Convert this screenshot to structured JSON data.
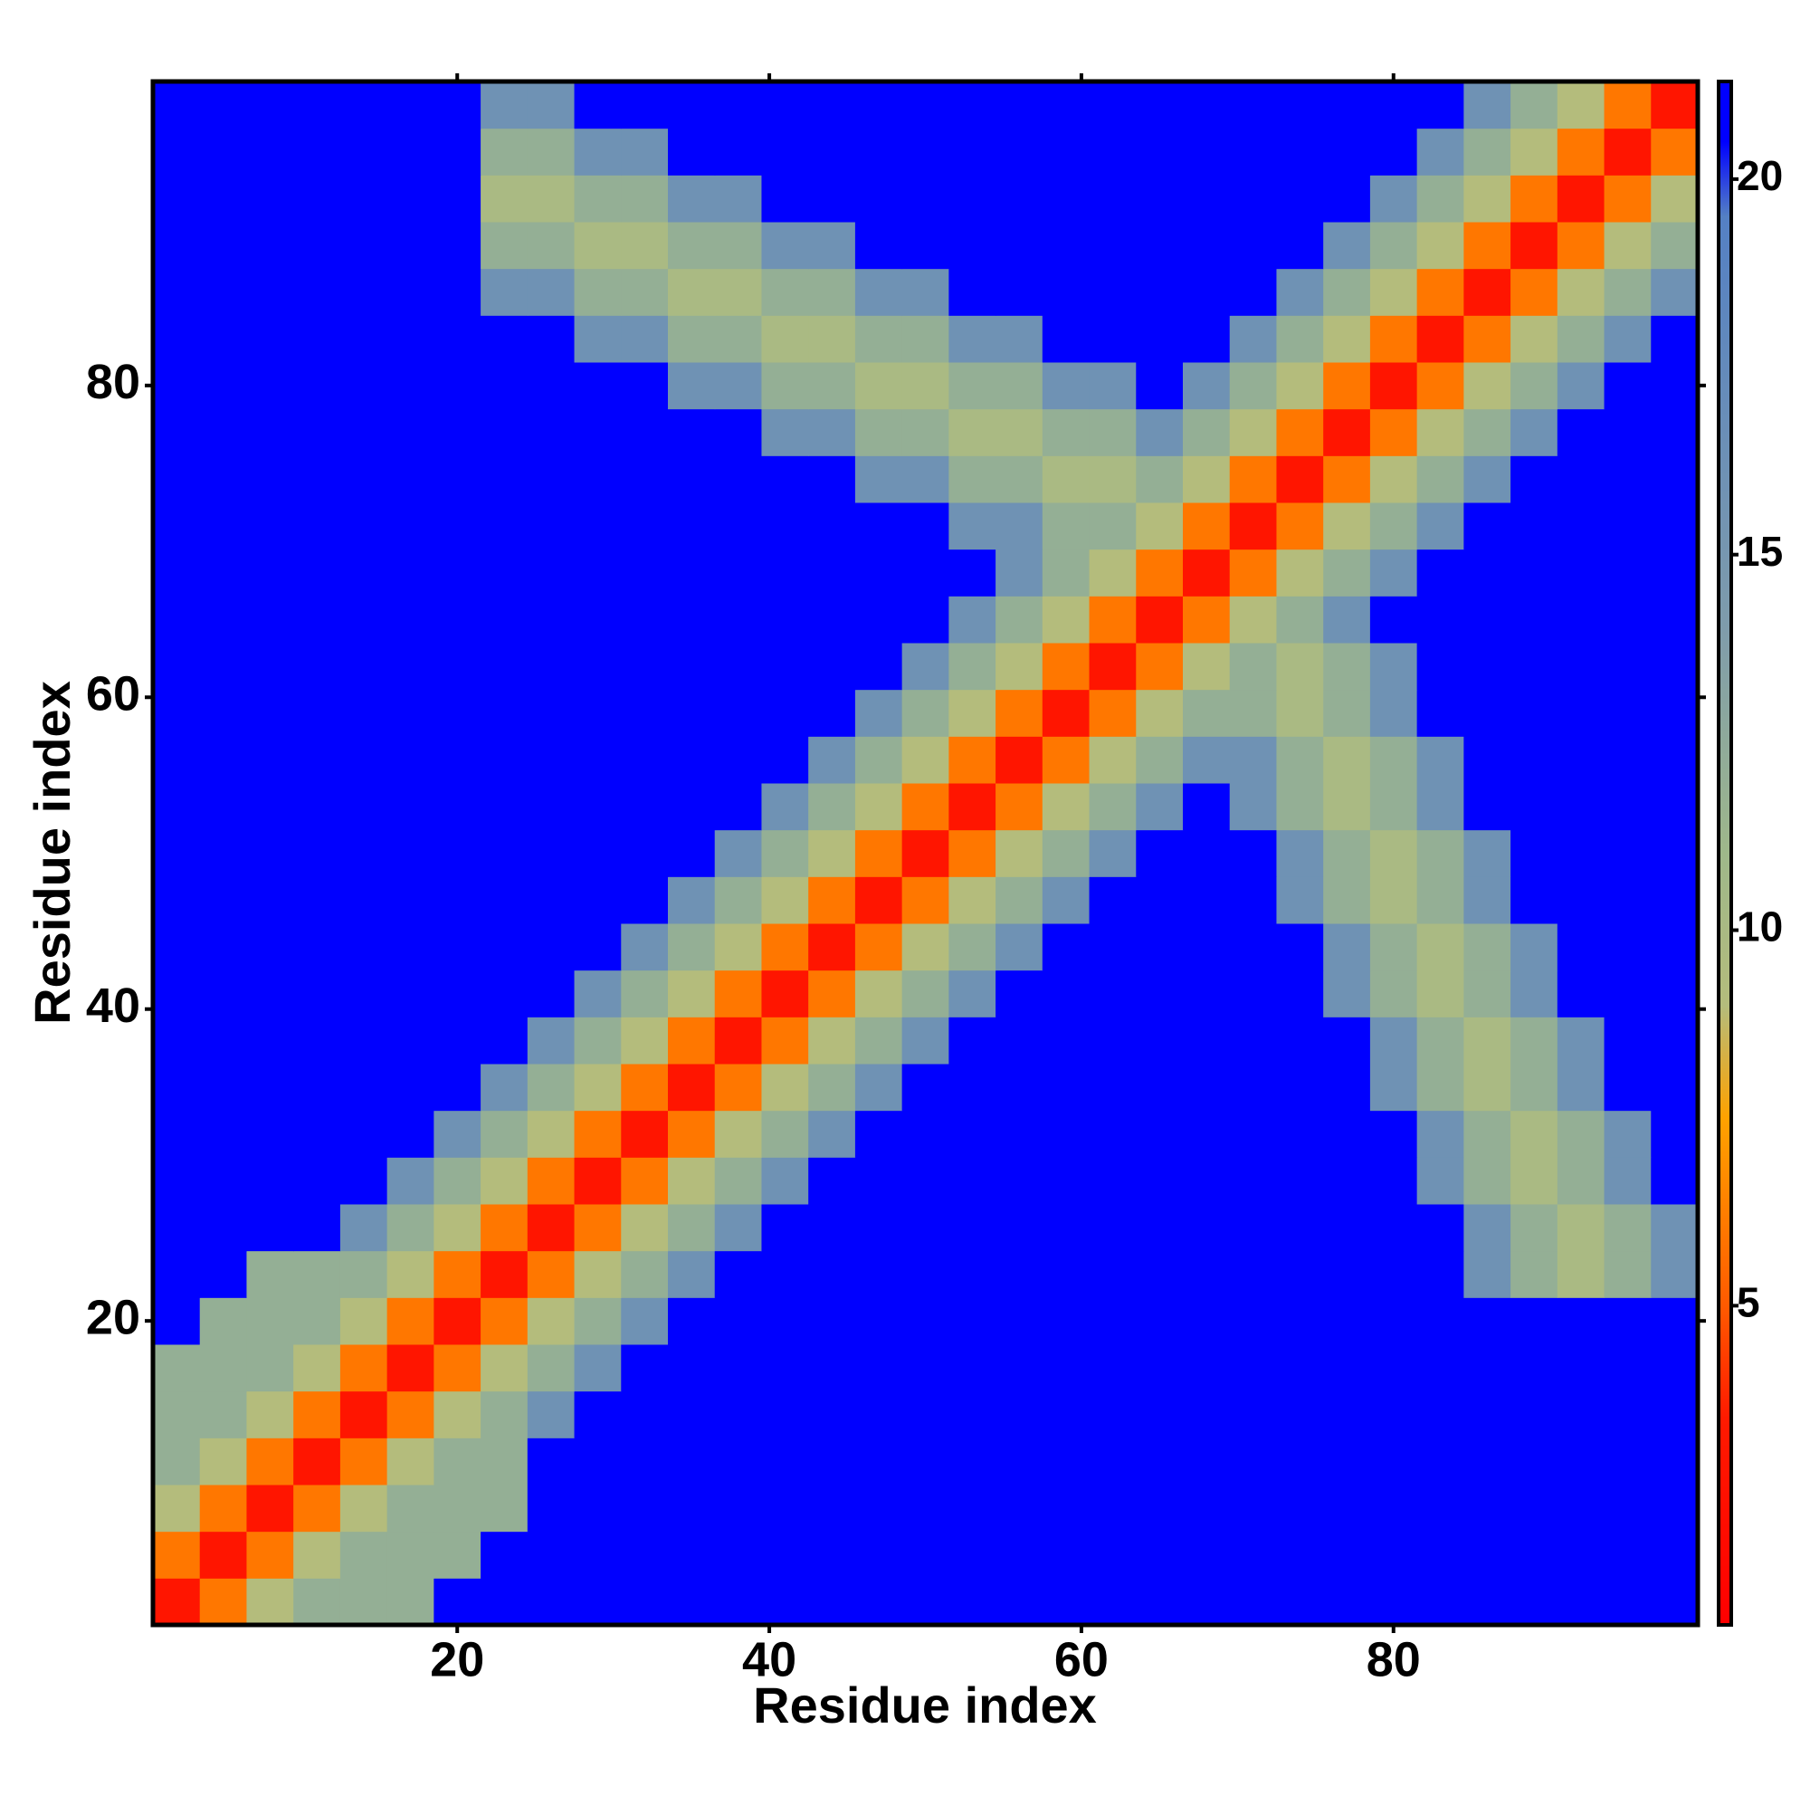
{
  "chart_data": {
    "type": "heatmap",
    "xlabel": "Residue index",
    "ylabel": "Residue index",
    "xlim": [
      0.5,
      99.5
    ],
    "ylim": [
      0.5,
      99.5
    ],
    "xticks": [
      20,
      40,
      60,
      80
    ],
    "yticks": [
      20,
      40,
      60,
      80
    ],
    "x": [
      2,
      5,
      8,
      11,
      14,
      17,
      20,
      23,
      26,
      29,
      32,
      35,
      38,
      41,
      44,
      47,
      50,
      53,
      56,
      59,
      62,
      65,
      68,
      71,
      74,
      77,
      80,
      83,
      86,
      89,
      92,
      95,
      98
    ],
    "y": [
      2,
      5,
      8,
      11,
      14,
      17,
      20,
      23,
      26,
      29,
      32,
      35,
      38,
      41,
      44,
      47,
      50,
      53,
      56,
      59,
      62,
      65,
      68,
      71,
      74,
      77,
      80,
      83,
      86,
      89,
      92,
      95,
      98
    ],
    "z": [
      [
        3,
        6,
        9,
        12,
        12,
        12,
        21,
        21,
        21,
        21,
        21,
        21,
        21,
        21,
        21,
        21,
        21,
        21,
        21,
        21,
        21,
        21,
        21,
        21,
        21,
        21,
        21,
        21,
        21,
        21,
        21,
        21,
        21
      ],
      [
        6,
        3,
        6,
        9,
        12,
        12,
        12,
        21,
        21,
        21,
        21,
        21,
        21,
        21,
        21,
        21,
        21,
        21,
        21,
        21,
        21,
        21,
        21,
        21,
        21,
        21,
        21,
        21,
        21,
        21,
        21,
        21,
        21
      ],
      [
        9,
        6,
        3,
        6,
        9,
        12,
        12,
        12,
        21,
        21,
        21,
        21,
        21,
        21,
        21,
        21,
        21,
        21,
        21,
        21,
        21,
        21,
        21,
        21,
        21,
        21,
        21,
        21,
        21,
        21,
        21,
        21,
        21
      ],
      [
        12,
        9,
        6,
        3,
        6,
        9,
        12,
        12,
        21,
        21,
        21,
        21,
        21,
        21,
        21,
        21,
        21,
        21,
        21,
        21,
        21,
        21,
        21,
        21,
        21,
        21,
        21,
        21,
        21,
        21,
        21,
        21,
        21
      ],
      [
        12,
        12,
        9,
        6,
        3,
        6,
        9,
        12,
        16,
        21,
        21,
        21,
        21,
        21,
        21,
        21,
        21,
        21,
        21,
        21,
        21,
        21,
        21,
        21,
        21,
        21,
        21,
        21,
        21,
        21,
        21,
        21,
        21
      ],
      [
        12,
        12,
        12,
        9,
        6,
        3,
        6,
        9,
        12,
        16,
        21,
        21,
        21,
        21,
        21,
        21,
        21,
        21,
        21,
        21,
        21,
        21,
        21,
        21,
        21,
        21,
        21,
        21,
        21,
        21,
        21,
        21,
        21
      ],
      [
        21,
        12,
        12,
        12,
        9,
        6,
        3,
        6,
        9,
        12,
        16,
        21,
        21,
        21,
        21,
        21,
        21,
        21,
        21,
        21,
        21,
        21,
        21,
        21,
        21,
        21,
        21,
        21,
        21,
        21,
        21,
        21,
        21
      ],
      [
        21,
        21,
        12,
        12,
        12,
        9,
        6,
        3,
        6,
        9,
        12,
        16,
        21,
        21,
        21,
        21,
        21,
        21,
        21,
        21,
        21,
        21,
        21,
        21,
        21,
        21,
        21,
        21,
        16,
        12,
        10,
        12,
        16
      ],
      [
        21,
        21,
        21,
        21,
        16,
        12,
        9,
        6,
        3,
        6,
        9,
        12,
        16,
        21,
        21,
        21,
        21,
        21,
        21,
        21,
        21,
        21,
        21,
        21,
        21,
        21,
        21,
        21,
        16,
        12,
        10,
        12,
        16
      ],
      [
        21,
        21,
        21,
        21,
        21,
        16,
        12,
        9,
        6,
        3,
        6,
        9,
        12,
        16,
        21,
        21,
        21,
        21,
        21,
        21,
        21,
        21,
        21,
        21,
        21,
        21,
        21,
        16,
        12,
        10,
        12,
        16,
        21
      ],
      [
        21,
        21,
        21,
        21,
        21,
        21,
        16,
        12,
        9,
        6,
        3,
        6,
        9,
        12,
        16,
        21,
        21,
        21,
        21,
        21,
        21,
        21,
        21,
        21,
        21,
        21,
        21,
        16,
        12,
        10,
        12,
        16,
        21
      ],
      [
        21,
        21,
        21,
        21,
        21,
        21,
        21,
        16,
        12,
        9,
        6,
        3,
        6,
        9,
        12,
        16,
        21,
        21,
        21,
        21,
        21,
        21,
        21,
        21,
        21,
        21,
        16,
        12,
        10,
        12,
        16,
        21,
        21
      ],
      [
        21,
        21,
        21,
        21,
        21,
        21,
        21,
        21,
        16,
        12,
        9,
        6,
        3,
        6,
        9,
        12,
        16,
        21,
        21,
        21,
        21,
        21,
        21,
        21,
        21,
        21,
        16,
        12,
        10,
        12,
        16,
        21,
        21
      ],
      [
        21,
        21,
        21,
        21,
        21,
        21,
        21,
        21,
        21,
        16,
        12,
        9,
        6,
        3,
        6,
        9,
        12,
        16,
        21,
        21,
        21,
        21,
        21,
        21,
        21,
        16,
        12,
        10,
        12,
        16,
        21,
        21,
        21
      ],
      [
        21,
        21,
        21,
        21,
        21,
        21,
        21,
        21,
        21,
        21,
        16,
        12,
        9,
        6,
        3,
        6,
        9,
        12,
        16,
        21,
        21,
        21,
        21,
        21,
        21,
        16,
        12,
        10,
        12,
        16,
        21,
        21,
        21
      ],
      [
        21,
        21,
        21,
        21,
        21,
        21,
        21,
        21,
        21,
        21,
        21,
        16,
        12,
        9,
        6,
        3,
        6,
        9,
        12,
        16,
        21,
        21,
        21,
        21,
        16,
        12,
        10,
        12,
        16,
        21,
        21,
        21,
        21
      ],
      [
        21,
        21,
        21,
        21,
        21,
        21,
        21,
        21,
        21,
        21,
        21,
        21,
        16,
        12,
        9,
        6,
        3,
        6,
        9,
        12,
        16,
        21,
        21,
        21,
        16,
        12,
        10,
        12,
        16,
        21,
        21,
        21,
        21
      ],
      [
        21,
        21,
        21,
        21,
        21,
        21,
        21,
        21,
        21,
        21,
        21,
        21,
        21,
        16,
        12,
        9,
        6,
        3,
        6,
        9,
        12,
        16,
        21,
        16,
        12,
        10,
        12,
        16,
        21,
        21,
        21,
        21,
        21
      ],
      [
        21,
        21,
        21,
        21,
        21,
        21,
        21,
        21,
        21,
        21,
        21,
        21,
        21,
        21,
        16,
        12,
        9,
        6,
        3,
        6,
        9,
        12,
        16,
        16,
        12,
        10,
        12,
        16,
        21,
        21,
        21,
        21,
        21
      ],
      [
        21,
        21,
        21,
        21,
        21,
        21,
        21,
        21,
        21,
        21,
        21,
        21,
        21,
        21,
        21,
        16,
        12,
        9,
        6,
        3,
        6,
        9,
        12,
        12,
        10,
        12,
        16,
        21,
        21,
        21,
        21,
        21,
        21
      ],
      [
        21,
        21,
        21,
        21,
        21,
        21,
        21,
        21,
        21,
        21,
        21,
        21,
        21,
        21,
        21,
        21,
        16,
        12,
        9,
        6,
        3,
        6,
        9,
        12,
        10,
        12,
        16,
        21,
        21,
        21,
        21,
        21,
        21
      ],
      [
        21,
        21,
        21,
        21,
        21,
        21,
        21,
        21,
        21,
        21,
        21,
        21,
        21,
        21,
        21,
        21,
        21,
        16,
        12,
        9,
        6,
        3,
        6,
        9,
        12,
        16,
        21,
        21,
        21,
        21,
        21,
        21,
        21
      ],
      [
        21,
        21,
        21,
        21,
        21,
        21,
        21,
        21,
        21,
        21,
        21,
        21,
        21,
        21,
        21,
        21,
        21,
        21,
        16,
        12,
        9,
        6,
        3,
        6,
        9,
        12,
        16,
        21,
        21,
        21,
        21,
        21,
        21
      ],
      [
        21,
        21,
        21,
        21,
        21,
        21,
        21,
        21,
        21,
        21,
        21,
        21,
        21,
        21,
        21,
        21,
        21,
        16,
        16,
        12,
        12,
        9,
        6,
        3,
        6,
        9,
        12,
        16,
        21,
        21,
        21,
        21,
        21
      ],
      [
        21,
        21,
        21,
        21,
        21,
        21,
        21,
        21,
        21,
        21,
        21,
        21,
        21,
        21,
        21,
        16,
        16,
        12,
        12,
        10,
        10,
        12,
        9,
        6,
        3,
        6,
        9,
        12,
        16,
        21,
        21,
        21,
        21
      ],
      [
        21,
        21,
        21,
        21,
        21,
        21,
        21,
        21,
        21,
        21,
        21,
        21,
        21,
        16,
        16,
        12,
        12,
        10,
        10,
        12,
        12,
        16,
        12,
        9,
        6,
        3,
        6,
        9,
        12,
        16,
        21,
        21,
        21
      ],
      [
        21,
        21,
        21,
        21,
        21,
        21,
        21,
        21,
        21,
        21,
        21,
        16,
        16,
        12,
        12,
        10,
        10,
        12,
        12,
        16,
        16,
        21,
        16,
        12,
        9,
        6,
        3,
        6,
        9,
        12,
        16,
        21,
        21
      ],
      [
        21,
        21,
        21,
        21,
        21,
        21,
        21,
        21,
        21,
        16,
        16,
        12,
        12,
        10,
        10,
        12,
        12,
        16,
        16,
        21,
        21,
        21,
        21,
        16,
        12,
        9,
        6,
        3,
        6,
        9,
        12,
        16,
        21
      ],
      [
        21,
        21,
        21,
        21,
        21,
        21,
        21,
        16,
        16,
        12,
        12,
        10,
        10,
        12,
        12,
        16,
        16,
        21,
        21,
        21,
        21,
        21,
        21,
        21,
        16,
        12,
        9,
        6,
        3,
        6,
        9,
        12,
        16
      ],
      [
        21,
        21,
        21,
        21,
        21,
        21,
        21,
        12,
        12,
        10,
        10,
        12,
        12,
        16,
        16,
        21,
        21,
        21,
        21,
        21,
        21,
        21,
        21,
        21,
        21,
        16,
        12,
        9,
        6,
        3,
        6,
        9,
        12
      ],
      [
        21,
        21,
        21,
        21,
        21,
        21,
        21,
        10,
        10,
        12,
        12,
        16,
        16,
        21,
        21,
        21,
        21,
        21,
        21,
        21,
        21,
        21,
        21,
        21,
        21,
        21,
        16,
        12,
        9,
        6,
        3,
        6,
        9
      ],
      [
        21,
        21,
        21,
        21,
        21,
        21,
        21,
        12,
        12,
        16,
        16,
        21,
        21,
        21,
        21,
        21,
        21,
        21,
        21,
        21,
        21,
        21,
        21,
        21,
        21,
        21,
        21,
        16,
        12,
        9,
        6,
        3,
        6
      ],
      [
        21,
        21,
        21,
        21,
        21,
        21,
        21,
        16,
        16,
        21,
        21,
        21,
        21,
        21,
        21,
        21,
        21,
        21,
        21,
        21,
        21,
        21,
        21,
        21,
        21,
        21,
        21,
        21,
        16,
        12,
        9,
        6,
        3
      ]
    ],
    "colorscale": [
      {
        "value": 0.75,
        "color": "#ff0000"
      },
      {
        "value": 3.5,
        "color": "#ff1a00"
      },
      {
        "value": 5,
        "color": "#ff5a00"
      },
      {
        "value": 7.5,
        "color": "#ffa200"
      },
      {
        "value": 9,
        "color": "#b4bc7c"
      },
      {
        "value": 11,
        "color": "#9fb88a"
      },
      {
        "value": 14,
        "color": "#7f9cab"
      },
      {
        "value": 19.5,
        "color": "#5480c4"
      },
      {
        "value": 20.5,
        "color": "#0000ff"
      },
      {
        "value": 21.3,
        "color": "#0000ff"
      }
    ],
    "colorbar": {
      "lim": [
        0.75,
        21.3
      ],
      "ticks": [
        5,
        10,
        15,
        20
      ]
    }
  }
}
